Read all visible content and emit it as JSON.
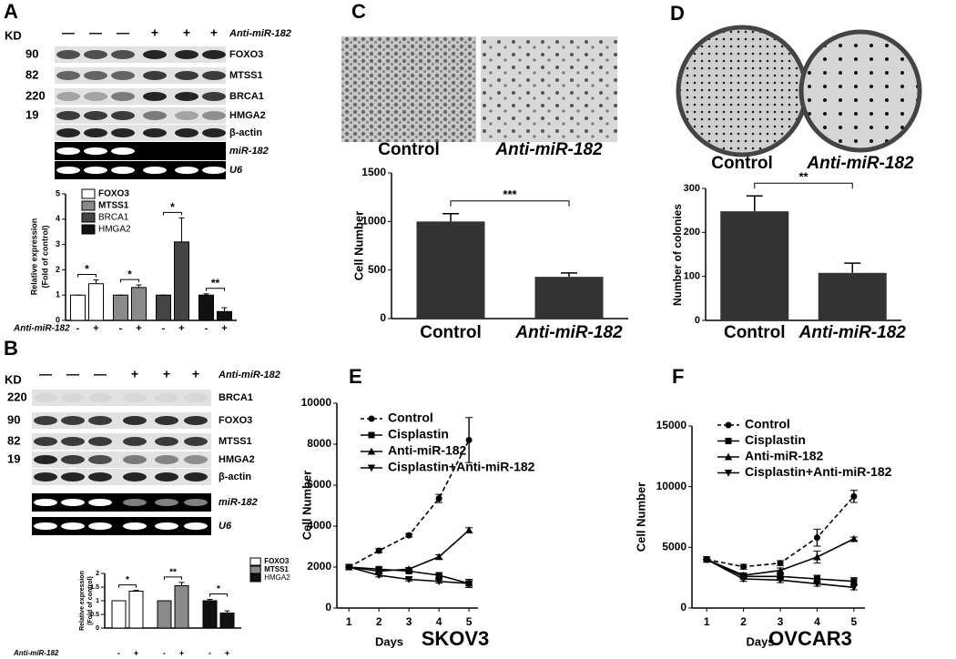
{
  "panel_labels": [
    "A",
    "B",
    "C",
    "D",
    "E",
    "F"
  ],
  "blot_a": {
    "kd": "KD",
    "treatment": [
      "—",
      "—",
      "—",
      "+",
      "+",
      "+"
    ],
    "treatment_label": "Anti-miR-182",
    "rows": [
      {
        "mw": "90",
        "name": "FOXO3"
      },
      {
        "mw": "82",
        "name": "MTSS1"
      },
      {
        "mw": "220",
        "name": "BRCA1"
      },
      {
        "mw": "19",
        "name": "HMGA2"
      },
      {
        "name": "β-actin"
      },
      {
        "name": "miR-182"
      },
      {
        "name": "U6"
      }
    ]
  },
  "blot_b": {
    "kd": "KD",
    "treatment": [
      "—",
      "—",
      "—",
      "+",
      "+",
      "+"
    ],
    "treatment_label": "Anti-miR-182",
    "rows": [
      {
        "mw": "220",
        "name": "BRCA1"
      },
      {
        "mw": "90",
        "name": "FOXO3"
      },
      {
        "mw": "82",
        "name": "MTSS1"
      },
      {
        "mw": "19",
        "name": "HMGA2"
      },
      {
        "name": "β-actin"
      },
      {
        "name": "miR-182"
      },
      {
        "name": "U6"
      }
    ]
  },
  "photo_labels": {
    "C": [
      "Control",
      "Anti-miR-182"
    ],
    "D": [
      "Control",
      "Anti-miR-182"
    ]
  },
  "chart_data": [
    {
      "type": "grouped-bar",
      "ylabel": [
        "Relative expression",
        "(Fold of control)"
      ],
      "xlabel": "Anti-miR-182",
      "x_marks": [
        "-",
        "+"
      ],
      "ylim": [
        0,
        5
      ],
      "yticks": [
        0,
        1,
        2,
        3,
        4,
        5
      ],
      "series": [
        {
          "name": "FOXO3",
          "color": "#ffffff",
          "values": [
            1,
            1.45
          ],
          "errors": [
            0,
            0.15
          ]
        },
        {
          "name": "MTSS1",
          "color": "#8a8a8a",
          "values": [
            1,
            1.3
          ],
          "errors": [
            0,
            0.1
          ]
        },
        {
          "name": "BRCA1",
          "color": "#444444",
          "values": [
            1,
            3.1
          ],
          "errors": [
            0,
            0.95
          ]
        },
        {
          "name": "HMGA2",
          "color": "#111111",
          "values": [
            1,
            0.35
          ],
          "errors": [
            0.05,
            0.15
          ]
        }
      ],
      "significance": [
        "*",
        "*",
        "*",
        "**"
      ]
    },
    {
      "type": "grouped-bar",
      "ylabel": [
        "Relative expression",
        "(Fold of control)"
      ],
      "xlabel": "Anti-miR-182",
      "x_marks": [
        "-",
        "+"
      ],
      "ylim": [
        0,
        2
      ],
      "yticks": [
        0,
        0.5,
        1,
        1.5,
        2
      ],
      "series": [
        {
          "name": "FOXO3",
          "color": "#ffffff",
          "values": [
            1,
            1.35
          ],
          "errors": [
            0,
            0.03
          ]
        },
        {
          "name": "MTSS1",
          "color": "#8a8a8a",
          "values": [
            1,
            1.55
          ],
          "errors": [
            0,
            0.12
          ]
        },
        {
          "name": "HMGA2",
          "color": "#111111",
          "values": [
            1,
            0.55
          ],
          "errors": [
            0.05,
            0.08
          ]
        }
      ],
      "significance": [
        "*",
        "**",
        "*"
      ]
    },
    {
      "type": "bar",
      "ylabel": "Cell Number",
      "categories": [
        "Control",
        "Anti-miR-182"
      ],
      "values": [
        1000,
        430
      ],
      "errors": [
        80,
        40
      ],
      "color": "#333333",
      "ylim": [
        0,
        1500
      ],
      "yticks": [
        0,
        500,
        1000,
        1500
      ],
      "significance": "***"
    },
    {
      "type": "bar",
      "ylabel": "Number of colonies",
      "categories": [
        "Control",
        "Anti-miR-182"
      ],
      "values": [
        248,
        108
      ],
      "errors": [
        35,
        22
      ],
      "color": "#333333",
      "ylim": [
        0,
        300
      ],
      "yticks": [
        0,
        100,
        200,
        300
      ],
      "significance": "**"
    },
    {
      "type": "line",
      "ylabel": "Cell Number",
      "xlabel": "Days",
      "annotation": "SKOV3",
      "x": [
        1,
        2,
        3,
        4,
        5
      ],
      "xlim": [
        0.6,
        5.3
      ],
      "xticks": [
        1,
        2,
        3,
        4,
        5
      ],
      "ylim": [
        0,
        10000
      ],
      "yticks": [
        0,
        2000,
        4000,
        6000,
        8000,
        10000
      ],
      "series": [
        {
          "name": "Control",
          "color": "#000000",
          "marker": "circle",
          "dashed": true,
          "values": [
            2000,
            2800,
            3550,
            5350,
            8200
          ],
          "errors": [
            0,
            100,
            80,
            200,
            1100
          ]
        },
        {
          "name": "Cisplastin",
          "color": "#000000",
          "marker": "square",
          "dashed": false,
          "values": [
            2000,
            1900,
            1800,
            1600,
            1200
          ],
          "errors": [
            0,
            80,
            80,
            100,
            200
          ]
        },
        {
          "name": "Anti-miR-182",
          "color": "#000000",
          "marker": "triangle-up",
          "dashed": false,
          "values": [
            2000,
            1800,
            1900,
            2500,
            3800
          ],
          "errors": [
            0,
            80,
            80,
            100,
            120
          ]
        },
        {
          "name": "Cisplastin+Anti-miR-182",
          "color": "#000000",
          "marker": "triangle-down",
          "dashed": false,
          "values": [
            2000,
            1600,
            1400,
            1300,
            1200
          ],
          "errors": [
            0,
            80,
            80,
            80,
            100
          ]
        }
      ]
    },
    {
      "type": "line",
      "ylabel": "Cell Number",
      "xlabel": "Days",
      "annotation": "OVCAR3",
      "x": [
        1,
        2,
        3,
        4,
        5
      ],
      "xlim": [
        0.6,
        5.3
      ],
      "xticks": [
        1,
        2,
        3,
        4,
        5
      ],
      "ylim": [
        0,
        15000
      ],
      "yticks": [
        0,
        5000,
        10000,
        15000
      ],
      "series": [
        {
          "name": "Control",
          "color": "#000000",
          "marker": "circle",
          "dashed": true,
          "values": [
            4000,
            3400,
            3700,
            5800,
            9200
          ],
          "errors": [
            0,
            200,
            200,
            700,
            500
          ]
        },
        {
          "name": "Cisplastin",
          "color": "#000000",
          "marker": "square",
          "dashed": false,
          "values": [
            4000,
            2600,
            2600,
            2400,
            2200
          ],
          "errors": [
            0,
            200,
            200,
            300,
            300
          ]
        },
        {
          "name": "Anti-miR-182",
          "color": "#000000",
          "marker": "triangle-up",
          "dashed": false,
          "values": [
            4000,
            2700,
            3100,
            4200,
            5700
          ],
          "errors": [
            0,
            200,
            200,
            500,
            150
          ]
        },
        {
          "name": "Cisplastin+Anti-miR-182",
          "color": "#000000",
          "marker": "triangle-down",
          "dashed": false,
          "values": [
            4000,
            2400,
            2300,
            2000,
            1700
          ],
          "errors": [
            0,
            200,
            200,
            200,
            200
          ]
        }
      ]
    }
  ]
}
